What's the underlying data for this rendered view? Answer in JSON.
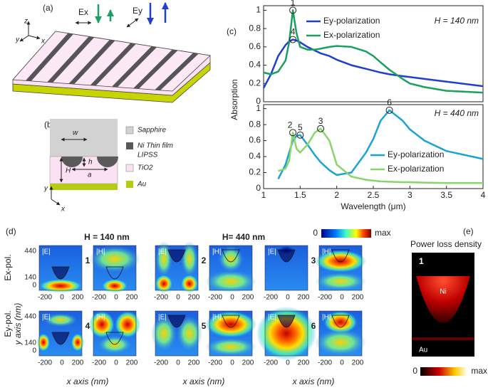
{
  "panel_a": {
    "label": "(a)",
    "axes": [
      "z",
      "y",
      "x"
    ],
    "polarizations": [
      "Ex",
      "Ey"
    ]
  },
  "panel_b": {
    "label": "(b)",
    "dimensions": [
      "w",
      "h",
      "a",
      "H"
    ],
    "axes": [
      "y",
      "x"
    ],
    "legend": [
      [
        "Sapphire"
      ],
      [
        "Ni Thin film",
        "LIPSS"
      ],
      [
        "TiO2"
      ],
      [
        "Au"
      ]
    ]
  },
  "panel_c": {
    "label": "(c)"
  },
  "chart_data": [
    {
      "type": "line",
      "annotation": "H = 140 nm",
      "y_label": "Absorption",
      "x": [
        1,
        1.1,
        1.2,
        1.3,
        1.35,
        1.4,
        1.45,
        1.5,
        1.6,
        1.7,
        1.78,
        1.9,
        2.0,
        2.2,
        2.4,
        2.5,
        2.6,
        2.72,
        2.9,
        3.0,
        3.2,
        3.5,
        4
      ],
      "xlim": [
        1,
        4
      ],
      "ylim": [
        0,
        1.05
      ],
      "yticks": [
        0,
        0.2,
        0.4,
        0.6,
        0.8,
        1
      ],
      "series": [
        {
          "name": "Ey-polarization",
          "color": "#1f3fd0",
          "values": [
            0.15,
            0.3,
            0.5,
            0.62,
            0.66,
            0.68,
            0.67,
            0.65,
            0.6,
            0.56,
            0.53,
            0.5,
            0.46,
            0.4,
            0.36,
            0.34,
            0.32,
            0.3,
            0.28,
            0.27,
            0.25,
            0.22,
            0.17
          ]
        },
        {
          "name": "Ex-polarization",
          "color": "#1aa060",
          "values": [
            0.32,
            0.3,
            0.33,
            0.45,
            0.65,
            1.0,
            0.75,
            0.6,
            0.57,
            0.57,
            0.58,
            0.6,
            0.61,
            0.6,
            0.55,
            0.5,
            0.43,
            0.35,
            0.25,
            0.2,
            0.16,
            0.12,
            0.1
          ]
        }
      ],
      "markers": [
        {
          "label": "1",
          "x": 1.4,
          "y": 1.0
        },
        {
          "label": "4",
          "x": 1.4,
          "y": 0.68
        }
      ]
    },
    {
      "type": "line",
      "annotation": "H = 440 nm",
      "x_label": "Wavelength (μm)",
      "x": [
        1,
        1.1,
        1.2,
        1.3,
        1.35,
        1.4,
        1.45,
        1.5,
        1.6,
        1.7,
        1.78,
        1.9,
        2.0,
        2.2,
        2.4,
        2.5,
        2.6,
        2.72,
        2.9,
        3.0,
        3.2,
        3.5,
        4
      ],
      "xlim": [
        1,
        4
      ],
      "xticks": [
        1,
        1.5,
        2,
        2.5,
        3,
        3.5,
        4
      ],
      "ylim": [
        0,
        1.05
      ],
      "yticks": [
        0,
        0.2,
        0.4,
        0.6,
        0.8,
        1
      ],
      "series": [
        {
          "name": "Ey-polarization",
          "color": "#1ba3d4",
          "values": [
            null,
            null,
            0.12,
            0.3,
            0.45,
            0.6,
            0.66,
            0.67,
            0.55,
            0.42,
            0.33,
            0.23,
            0.17,
            0.2,
            0.45,
            0.62,
            0.85,
            0.98,
            0.85,
            0.74,
            0.6,
            0.47,
            0.37
          ]
        },
        {
          "name": "Ex-polarization",
          "color": "#88d66a",
          "values": [
            null,
            null,
            0.22,
            0.25,
            0.35,
            0.7,
            0.5,
            0.45,
            0.55,
            0.7,
            0.75,
            0.6,
            0.3,
            0.15,
            0.11,
            0.1,
            0.09,
            0.085,
            0.08,
            0.08,
            0.075,
            0.07,
            0.07
          ]
        }
      ],
      "markers": [
        {
          "label": "2",
          "x": 1.4,
          "y": 0.7
        },
        {
          "label": "5",
          "x": 1.5,
          "y": 0.67
        },
        {
          "label": "3",
          "x": 1.78,
          "y": 0.75
        },
        {
          "label": "6",
          "x": 2.72,
          "y": 0.98
        }
      ]
    }
  ],
  "panel_d": {
    "label": "(d)",
    "titles": [
      "H = 140 nm",
      "H= 440 nm"
    ],
    "colorbar": [
      "0",
      "max"
    ],
    "row_labels": [
      "Ex-pol.",
      "Ey-pol."
    ],
    "y_axis_label": "y axis (nm)",
    "x_axis_label": "x axis (nm)",
    "y_ticks": [
      "440",
      "140",
      "0"
    ],
    "x_ticks": [
      "-200",
      "0",
      "200"
    ],
    "fields": [
      "|E|",
      "|H|"
    ],
    "cases": [
      "1",
      "2",
      "3",
      "4",
      "5",
      "6"
    ]
  },
  "panel_e": {
    "label": "(e)",
    "title": "Power loss density",
    "case": "1",
    "materials": [
      "Ni",
      "Au"
    ],
    "colorbar": [
      "0",
      "max"
    ]
  }
}
